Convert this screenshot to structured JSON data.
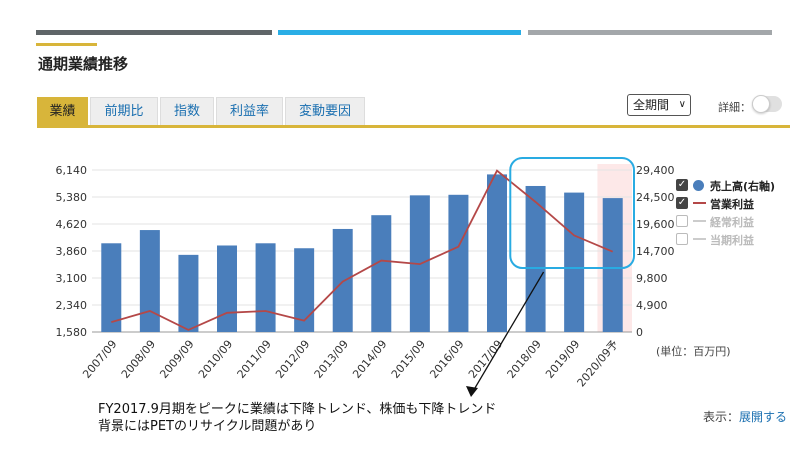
{
  "header": {
    "title": "通期業績推移"
  },
  "tabs": [
    {
      "label": "業績",
      "active": true
    },
    {
      "label": "前期比",
      "active": false
    },
    {
      "label": "指数",
      "active": false
    },
    {
      "label": "利益率",
      "active": false
    },
    {
      "label": "変動要因",
      "active": false
    }
  ],
  "controls": {
    "period": "全期間",
    "detail_label": "詳細：",
    "detail_on": false
  },
  "legend": [
    {
      "label": "売上高(右軸)",
      "checked": true,
      "marker": "dot"
    },
    {
      "label": "営業利益",
      "checked": true,
      "marker": "line"
    },
    {
      "label": "経常利益",
      "checked": false,
      "marker": "line"
    },
    {
      "label": "当期利益",
      "checked": false,
      "marker": "line"
    }
  ],
  "unit_label": "(単位：百万円)",
  "annotation": {
    "line1": "FY2017.9月期をピークに業績は下降トレンド、株価も下降トレンド",
    "line2": "背景にはPETのリサイクル問題があり"
  },
  "footer": {
    "display_label": "表示：",
    "expand_label": "展開する"
  },
  "colors": {
    "bar": "#4a7ebb",
    "line": "#b44848",
    "accent": "#d8b53a",
    "highlight": "#29abe2",
    "forecast_bg": "#fde8e8"
  },
  "chart_data": {
    "type": "bar+line",
    "categories": [
      "2007/09",
      "2008/09",
      "2009/09",
      "2010/09",
      "2011/09",
      "2012/09",
      "2013/09",
      "2014/09",
      "2015/09",
      "2016/09",
      "2017/09",
      "2018/09",
      "2019/09",
      "2020/09予"
    ],
    "series": [
      {
        "name": "売上高(右軸)",
        "type": "bar",
        "axis": "right",
        "values": [
          16100,
          18500,
          14000,
          15700,
          16100,
          15200,
          18700,
          21200,
          24800,
          24900,
          28600,
          26500,
          25300,
          24300
        ]
      },
      {
        "name": "営業利益",
        "type": "line",
        "axis": "left",
        "values": [
          1860,
          2170,
          1640,
          2120,
          2170,
          1900,
          3000,
          3590,
          3490,
          3980,
          6120,
          5240,
          4300,
          3840
        ]
      }
    ],
    "left_ticks": [
      "6,140",
      "5,380",
      "4,620",
      "3,860",
      "3,100",
      "2,340",
      "1,580"
    ],
    "right_ticks": [
      "29,400",
      "24,500",
      "19,600",
      "14,700",
      "9,800",
      "4,900",
      "0"
    ],
    "ylim_left": [
      1580,
      6140
    ],
    "ylim_right": [
      0,
      29400
    ],
    "forecast_category": "2020/09予"
  }
}
